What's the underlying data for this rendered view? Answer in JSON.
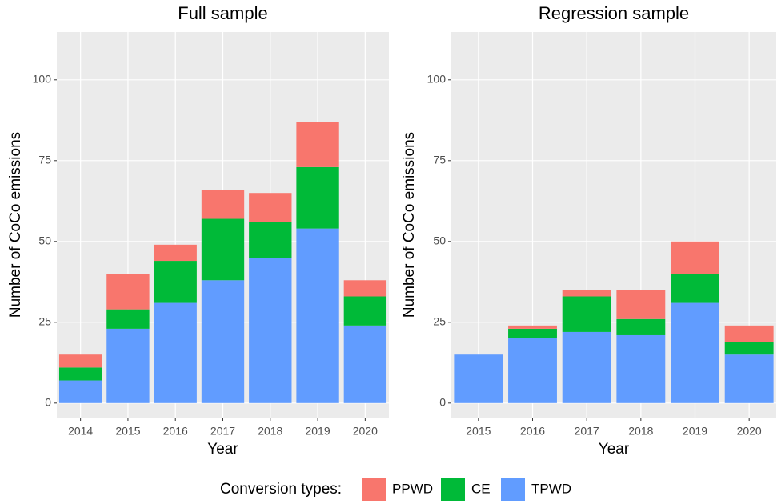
{
  "chart_data": [
    {
      "type": "bar",
      "stacked": true,
      "title": "Full sample",
      "xlabel": "Year",
      "ylabel": "Number of CoCo emissions",
      "legend_title": "Conversion types:",
      "categories": [
        "2014",
        "2015",
        "2016",
        "2017",
        "2018",
        "2019",
        "2020"
      ],
      "series": [
        {
          "name": "PPWD",
          "color": "#f8766d",
          "values": [
            4,
            11,
            5,
            9,
            9,
            14,
            5
          ]
        },
        {
          "name": "CE",
          "color": "#00ba38",
          "values": [
            4,
            6,
            13,
            19,
            11,
            19,
            9
          ]
        },
        {
          "name": "TPWD",
          "color": "#619cff",
          "values": [
            7,
            23,
            31,
            38,
            45,
            54,
            24
          ]
        }
      ],
      "ylim": [
        -4.5,
        114.8
      ],
      "yticks": [
        0,
        25,
        50,
        75,
        100
      ],
      "grid": true
    },
    {
      "type": "bar",
      "stacked": true,
      "title": "Regression sample",
      "xlabel": "Year",
      "ylabel": "Number of CoCo emissions",
      "categories": [
        "2015",
        "2016",
        "2017",
        "2018",
        "2019",
        "2020"
      ],
      "series": [
        {
          "name": "PPWD",
          "color": "#f8766d",
          "values": [
            0,
            1,
            2,
            9,
            10,
            5
          ]
        },
        {
          "name": "CE",
          "color": "#00ba38",
          "values": [
            0,
            3,
            11,
            5,
            9,
            4
          ]
        },
        {
          "name": "TPWD",
          "color": "#619cff",
          "values": [
            15,
            20,
            22,
            21,
            31,
            15
          ]
        }
      ],
      "ylim": [
        -4.5,
        114.8
      ],
      "yticks": [
        0,
        25,
        50,
        75,
        100
      ],
      "grid": true
    }
  ]
}
